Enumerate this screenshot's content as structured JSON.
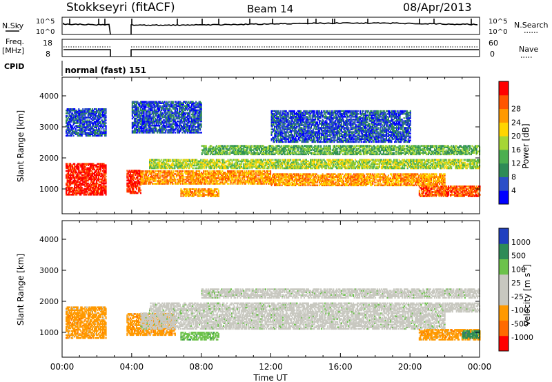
{
  "header": {
    "station": "Stokkseyri (fitACF)",
    "beam": "Beam 14",
    "date": "08/Apr/2013"
  },
  "top_panels": {
    "nsky_label": "N.Sky",
    "nsky_scale": [
      "10^5",
      "10^0"
    ],
    "nsearch_label": "N.Search",
    "nsearch_scale": [
      "10^5",
      "10^0"
    ],
    "freq_label": "Freq.",
    "freq_unit": "[MHz]",
    "freq_ticks": [
      "18",
      "8"
    ],
    "nave_label": "Nave",
    "nave_ticks": [
      "60",
      "0"
    ],
    "cpid_label": "CPID",
    "cpid_text": "normal (fast) 151"
  },
  "chart_data": [
    {
      "type": "heatmap",
      "panel": "power",
      "xlabel": "",
      "ylabel": "Slant Range [km]",
      "x_range_hours": [
        0,
        24
      ],
      "ylim": [
        200,
        4600
      ],
      "y_ticks": [
        "1000",
        "2000",
        "3000",
        "4000"
      ],
      "colorbar_label": "Power [dB]",
      "colorbar_ticks": [
        "4",
        "8",
        "12",
        "16",
        "20",
        "24",
        "28"
      ],
      "colors": [
        "#0000ff",
        "#2b4ec8",
        "#2e8b57",
        "#4caf50",
        "#a6d635",
        "#ffd500",
        "#ff9900",
        "#ff5500",
        "#ff0000"
      ],
      "bands": [
        {
          "t0": 0.2,
          "t1": 2.5,
          "r0": 800,
          "r1": 1800,
          "level": 8
        },
        {
          "t0": 3.7,
          "t1": 4.5,
          "r0": 850,
          "r1": 1600,
          "level": 8
        },
        {
          "t0": 4.5,
          "t1": 12,
          "r0": 1150,
          "r1": 1600,
          "level": 6
        },
        {
          "t0": 12,
          "t1": 22,
          "r0": 1100,
          "r1": 1500,
          "level": 6
        },
        {
          "t0": 5,
          "t1": 24,
          "r0": 1650,
          "r1": 1950,
          "level": 4
        },
        {
          "t0": 8,
          "t1": 24,
          "r0": 2100,
          "r1": 2400,
          "level": 3
        },
        {
          "t0": 20.5,
          "t1": 24,
          "r0": 750,
          "r1": 1100,
          "level": 7
        },
        {
          "t0": 6.8,
          "t1": 9,
          "r0": 750,
          "r1": 1000,
          "level": 6
        },
        {
          "t0": 0.2,
          "t1": 2.5,
          "r0": 2700,
          "r1": 3600,
          "level": 1
        },
        {
          "t0": 4,
          "t1": 8,
          "r0": 2800,
          "r1": 3800,
          "level": 1
        },
        {
          "t0": 12,
          "t1": 20,
          "r0": 2500,
          "r1": 3500,
          "level": 1
        }
      ]
    },
    {
      "type": "heatmap",
      "panel": "velocity",
      "xlabel": "Time UT",
      "ylabel": "Slant Range [km]",
      "x_range_hours": [
        0,
        24
      ],
      "x_ticks": [
        "00:00",
        "04:00",
        "08:00",
        "12:00",
        "16:00",
        "20:00",
        "00:00"
      ],
      "ylim": [
        200,
        4600
      ],
      "y_ticks": [
        "1000",
        "2000",
        "3000",
        "4000"
      ],
      "colorbar_label": "Velocity [m s",
      "colorbar_sup": "-1",
      "colorbar_ticks": [
        "1000",
        "500",
        "100",
        "25",
        "-25",
        "-100",
        "-500",
        "-1000"
      ],
      "colors": [
        "#2040c0",
        "#2e8b57",
        "#6cc24a",
        "#c8c8c0",
        "#c8c8c0",
        "#ff9900",
        "#ff6a00",
        "#ff0000"
      ],
      "bands": [
        {
          "t0": 0.2,
          "t1": 2.5,
          "r0": 800,
          "r1": 1800,
          "color": 5
        },
        {
          "t0": 3.7,
          "t1": 6.5,
          "r0": 900,
          "r1": 1600,
          "color": 5
        },
        {
          "t0": 4.5,
          "t1": 22,
          "r0": 1100,
          "r1": 1600,
          "color": 3
        },
        {
          "t0": 5,
          "t1": 24,
          "r0": 1650,
          "r1": 1950,
          "color": 3
        },
        {
          "t0": 8,
          "t1": 24,
          "r0": 2100,
          "r1": 2400,
          "color": 3
        },
        {
          "t0": 20.5,
          "t1": 24,
          "r0": 750,
          "r1": 1100,
          "color": 5
        },
        {
          "t0": 6.8,
          "t1": 9,
          "r0": 750,
          "r1": 1000,
          "color": 2
        },
        {
          "t0": 23,
          "t1": 24,
          "r0": 800,
          "r1": 1050,
          "color": 1
        }
      ]
    }
  ]
}
